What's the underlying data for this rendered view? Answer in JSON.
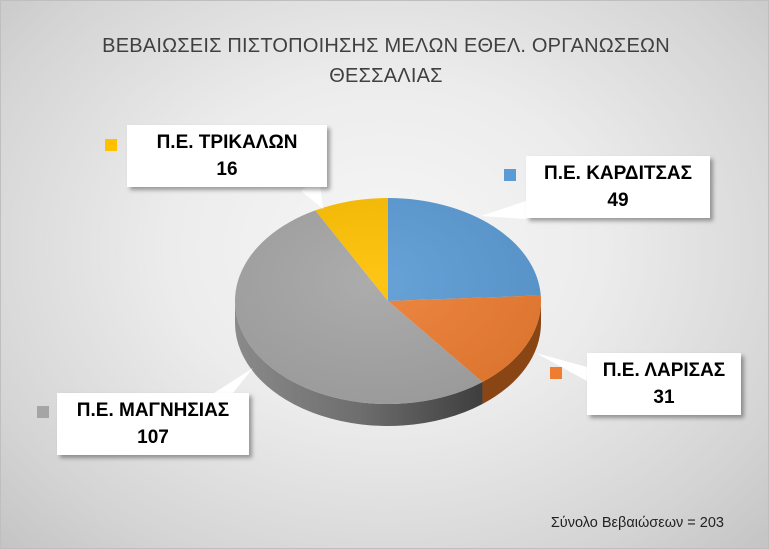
{
  "chart_data": {
    "type": "pie",
    "title": "ΒΕΒΑΙΩΣΕΙΣ ΠΙΣΤΟΠΟΙΗΣΗΣ ΜΕΛΩΝ ΕΘΕΛ. ΟΡΓΑΝΩΣΕΩΝ ΘΕΣΣΑΛΙΑΣ",
    "title_lines": [
      "ΒΕΒΑΙΩΣΕΙΣ ΠΙΣΤΟΠΟΙΗΣΗΣ ΜΕΛΩΝ ΕΘΕΛ. ΟΡΓΑΝΩΣΕΩΝ",
      "ΘΕΣΣΑΛΙΑΣ"
    ],
    "style": "3d-pie",
    "categories": [
      "Π.Ε. ΚΑΡΔΙΤΣΑΣ",
      "Π.Ε. ΛΑΡΙΣΑΣ",
      "Π.Ε. ΜΑΓΝΗΣΙΑΣ",
      "Π.Ε. ΤΡΙΚΑΛΩΝ"
    ],
    "values": [
      49,
      31,
      107,
      16
    ],
    "colors": [
      "#5b9bd5",
      "#ed7d31",
      "#a5a5a5",
      "#ffc000"
    ],
    "labels": [
      {
        "name": "Π.Ε. ΚΑΡΔΙΤΣΑΣ",
        "value": "49"
      },
      {
        "name": "Π.Ε. ΛΑΡΙΣΑΣ",
        "value": "31"
      },
      {
        "name": "Π.Ε. ΜΑΓΝΗΣΙΑΣ",
        "value": "107"
      },
      {
        "name": "Π.Ε. ΤΡΙΚΑΛΩΝ",
        "value": "16"
      }
    ],
    "annotation": "Σύνολο Βεβαιώσεων = 203",
    "total": 203
  }
}
